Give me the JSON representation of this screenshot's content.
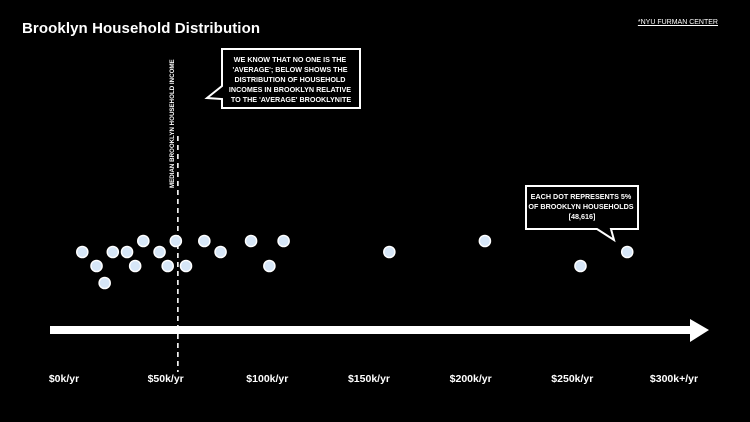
{
  "title": "Brooklyn Household Distribution",
  "source": "*NYU FURMAN CENTER",
  "colors": {
    "background": "#000000",
    "text": "#ffffff",
    "dot_fill": "#d6e6f7",
    "dot_stroke": "#ffffff"
  },
  "chart_data": {
    "type": "scatter",
    "title": "Brooklyn Household Distribution",
    "xlabel": "",
    "ylabel": "",
    "xlim": [
      0,
      300000
    ],
    "tick_values": [
      0,
      50000,
      100000,
      150000,
      200000,
      250000,
      300000
    ],
    "tick_labels": [
      "$0k/yr",
      "$50k/yr",
      "$100k/yr",
      "$150k/yr",
      "$200k/yr",
      "$250k/yr",
      "$300k+/yr"
    ],
    "grid": false,
    "median_label": "MEDIAN BROOKLYN HOUSEHOLD INCOME",
    "median_value": 56000,
    "dots": [
      {
        "income": 9000,
        "level": 2
      },
      {
        "income": 16000,
        "level": 1
      },
      {
        "income": 20000,
        "level": 0
      },
      {
        "income": 24000,
        "level": 2
      },
      {
        "income": 31000,
        "level": 2
      },
      {
        "income": 35000,
        "level": 1
      },
      {
        "income": 39000,
        "level": 3
      },
      {
        "income": 47000,
        "level": 2
      },
      {
        "income": 51000,
        "level": 1
      },
      {
        "income": 55000,
        "level": 3
      },
      {
        "income": 60000,
        "level": 1
      },
      {
        "income": 69000,
        "level": 3
      },
      {
        "income": 77000,
        "level": 2
      },
      {
        "income": 92000,
        "level": 3
      },
      {
        "income": 101000,
        "level": 1
      },
      {
        "income": 108000,
        "level": 3
      },
      {
        "income": 160000,
        "level": 2
      },
      {
        "income": 207000,
        "level": 3
      },
      {
        "income": 254000,
        "level": 1
      },
      {
        "income": 277000,
        "level": 2
      }
    ],
    "annotations": {
      "intro": [
        "WE KNOW THAT NO ONE IS THE",
        "'AVERAGE'; BELOW SHOWS THE",
        "DISTRIBUTION OF HOUSEHOLD",
        "INCOMES IN BROOKLYN RELATIVE",
        "TO THE 'AVERAGE' BROOKLYNITE"
      ],
      "dot_key": [
        "EACH DOT REPRESENTS 5%",
        "OF BROOKLYN HOUSEHOLDS",
        "[48,616]"
      ]
    }
  }
}
